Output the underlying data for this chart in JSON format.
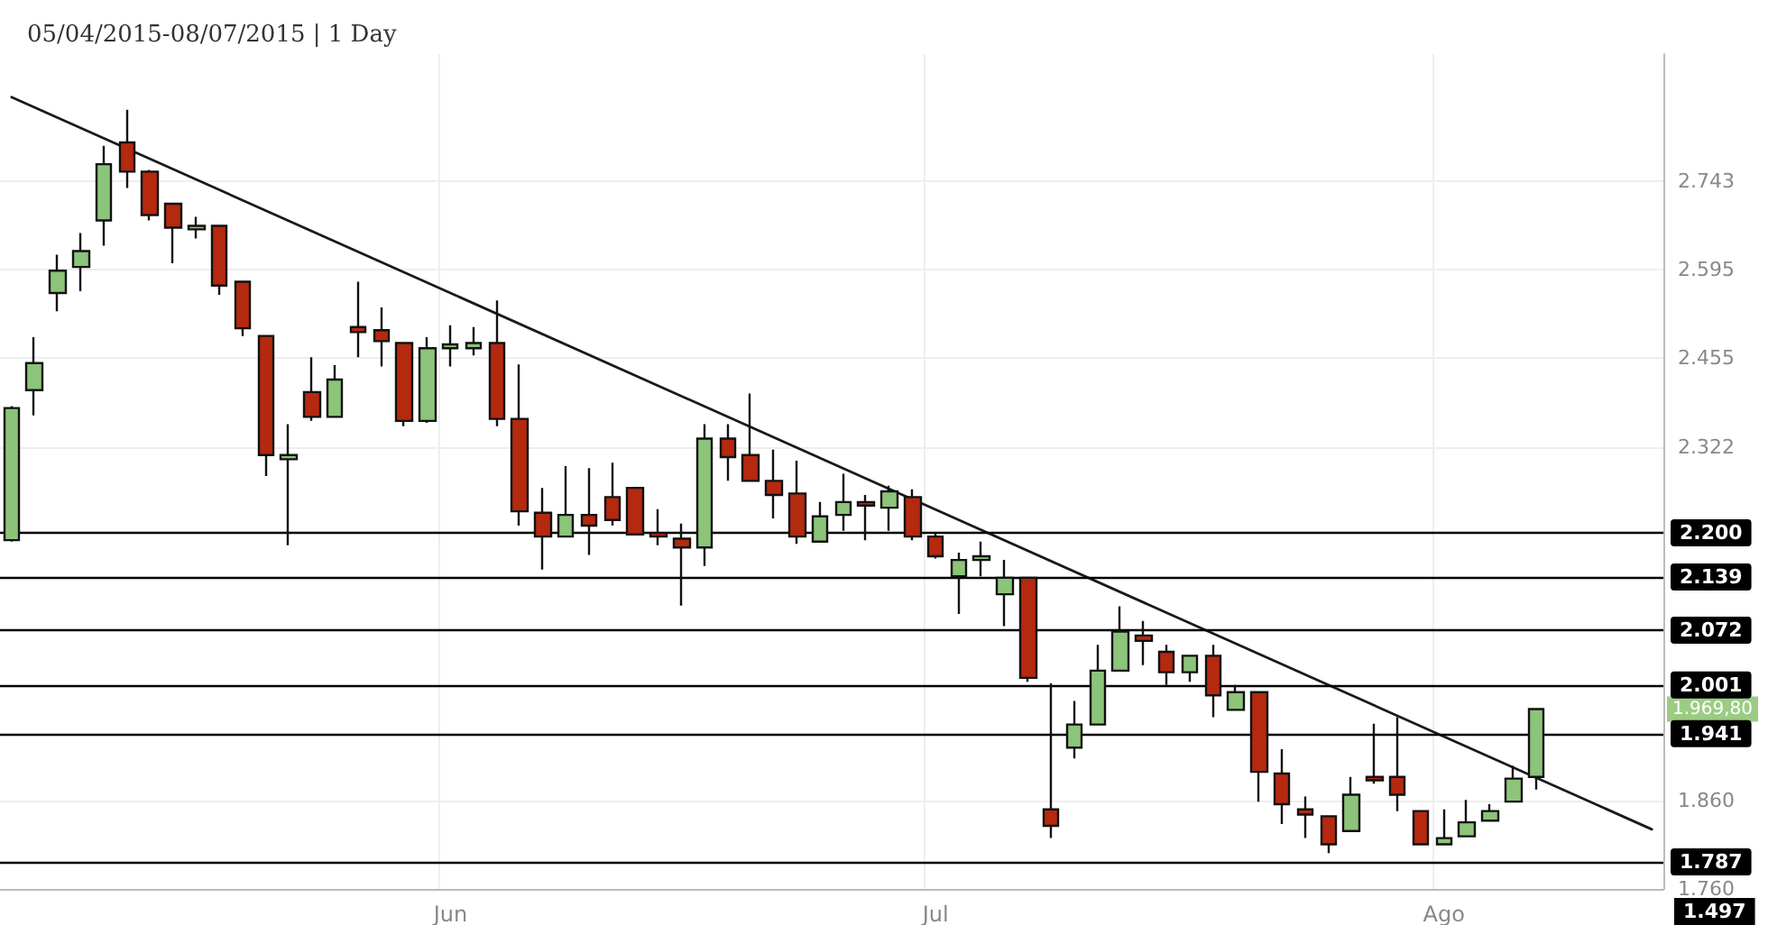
{
  "chart_data": {
    "type": "candlestick",
    "title": "05/04/2015-08/07/2015 | 1 Day",
    "log": true,
    "grid": true,
    "categories": [
      null,
      null,
      null,
      null,
      null,
      null,
      null,
      null,
      null,
      null,
      null,
      null,
      null,
      null,
      null,
      null,
      null,
      null,
      null,
      "Jun",
      null,
      null,
      null,
      null,
      null,
      null,
      null,
      null,
      null,
      null,
      null,
      null,
      null,
      null,
      null,
      null,
      null,
      null,
      null,
      null,
      "Jul",
      null,
      null,
      null,
      null,
      null,
      null,
      null,
      null,
      null,
      null,
      null,
      null,
      null,
      null,
      null,
      null,
      null,
      null,
      null,
      null,
      null,
      "Ago",
      null,
      null,
      null,
      null,
      null,
      null,
      null,
      null,
      null
    ],
    "ylim": [
      1.76,
      2.97
    ],
    "yticks": [
      {
        "value": 1.76,
        "label": "1.760"
      },
      {
        "value": 1.86,
        "label": "1.860"
      },
      2.322,
      2.455,
      2.595,
      2.743
    ],
    "series": [
      {
        "colors": [
          "#8cc47a",
          "#8cc47a",
          "#8cc47a",
          "#8cc47a",
          "#8cc47a",
          "#b5290f",
          "#b5290f",
          "#b5290f",
          "#8cc47a",
          "#b5290f",
          "#b5290f",
          "#b5290f",
          "#8cc47a",
          "#b5290f",
          "#8cc47a",
          "#b5290f",
          "#b5290f",
          "#b5290f",
          "#8cc47a",
          "#8cc47a",
          "#8cc47a",
          "#b5290f",
          "#b5290f",
          "#b5290f",
          "#8cc47a",
          "#b5290f",
          "#b5290f",
          "#b5290f",
          "#b5290f",
          "#b5290f",
          "#8cc47a",
          "#b5290f",
          "#b5290f",
          "#b5290f",
          "#b5290f",
          "#8cc47a",
          "#8cc47a",
          "#b5290f",
          "#8cc47a",
          "#b5290f",
          "#b5290f",
          "#8cc47a",
          "#8cc47a",
          "#8cc47a",
          "#b5290f",
          "#b5290f",
          "#8cc47a",
          "#8cc47a",
          "#8cc47a",
          "#b5290f",
          "#b5290f",
          "#8cc47a",
          "#b5290f",
          "#8cc47a",
          "#b5290f",
          "#b5290f",
          "#b5290f",
          "#b5290f",
          "#8cc47a",
          "#b5290f",
          "#b5290f",
          "#b5290f",
          "#8cc47a",
          "#8cc47a",
          "#8cc47a",
          "#8cc47a",
          "#8cc47a",
          null,
          null,
          null,
          null,
          null
        ],
        "ohlc": [
          [
            2.19,
            2.382,
            2.188,
            2.379
          ],
          [
            2.406,
            2.487,
            2.368,
            2.447
          ],
          [
            2.557,
            2.619,
            2.528,
            2.593
          ],
          [
            2.599,
            2.655,
            2.56,
            2.625
          ],
          [
            2.676,
            2.804,
            2.634,
            2.772
          ],
          [
            2.81,
            2.868,
            2.731,
            2.759
          ],
          [
            2.759,
            2.762,
            2.676,
            2.685
          ],
          [
            2.704,
            2.704,
            2.605,
            2.664
          ],
          [
            2.661,
            2.682,
            2.646,
            2.667
          ],
          [
            2.667,
            2.667,
            2.554,
            2.569
          ],
          [
            2.575,
            2.575,
            2.489,
            2.501
          ],
          [
            2.489,
            2.489,
            2.28,
            2.31
          ],
          [
            2.304,
            2.355,
            2.183,
            2.31
          ],
          [
            2.403,
            2.456,
            2.36,
            2.366
          ],
          [
            2.366,
            2.444,
            2.366,
            2.422
          ],
          [
            2.503,
            2.575,
            2.456,
            2.495
          ],
          [
            2.498,
            2.534,
            2.442,
            2.481
          ],
          [
            2.478,
            2.478,
            2.352,
            2.36
          ],
          [
            2.36,
            2.487,
            2.357,
            2.47
          ],
          [
            2.47,
            2.506,
            2.442,
            2.476
          ],
          [
            2.47,
            2.503,
            2.459,
            2.478
          ],
          [
            2.478,
            2.545,
            2.352,
            2.363
          ],
          [
            2.363,
            2.445,
            2.21,
            2.23
          ],
          [
            2.228,
            2.263,
            2.15,
            2.195
          ],
          [
            2.195,
            2.294,
            2.195,
            2.225
          ],
          [
            2.225,
            2.291,
            2.17,
            2.21
          ],
          [
            2.25,
            2.299,
            2.21,
            2.218
          ],
          [
            2.263,
            2.263,
            2.198,
            2.198
          ],
          [
            2.2,
            2.233,
            2.183,
            2.195
          ],
          [
            2.192,
            2.213,
            2.102,
            2.18
          ],
          [
            2.18,
            2.355,
            2.155,
            2.334
          ],
          [
            2.334,
            2.355,
            2.273,
            2.307
          ],
          [
            2.31,
            2.401,
            2.273,
            2.273
          ],
          [
            2.273,
            2.318,
            2.22,
            2.253
          ],
          [
            2.255,
            2.302,
            2.185,
            2.195
          ],
          [
            2.188,
            2.243,
            2.188,
            2.223
          ],
          [
            2.225,
            2.283,
            2.203,
            2.243
          ],
          [
            2.243,
            2.253,
            2.19,
            2.238
          ],
          [
            2.235,
            2.266,
            2.203,
            2.258
          ],
          [
            2.25,
            2.261,
            2.19,
            2.195
          ],
          [
            2.195,
            2.2,
            2.165,
            2.168
          ],
          [
            2.141,
            2.173,
            2.091,
            2.163
          ],
          [
            2.163,
            2.188,
            2.141,
            2.168
          ],
          [
            2.117,
            2.163,
            2.075,
            2.139
          ],
          [
            2.139,
            2.139,
            2.004,
            2.009
          ],
          [
            1.85,
            2.002,
            1.817,
            1.831
          ],
          [
            1.923,
            1.98,
            1.91,
            1.951
          ],
          [
            1.951,
            2.051,
            1.951,
            2.018
          ],
          [
            2.018,
            2.101,
            2.018,
            2.068
          ],
          [
            2.063,
            2.082,
            2.025,
            2.056
          ],
          [
            2.042,
            2.051,
            2.0,
            2.016
          ],
          [
            2.016,
            2.037,
            2.004,
            2.037
          ],
          [
            2.037,
            2.051,
            1.96,
            1.987
          ],
          [
            1.969,
            2.0,
            1.969,
            1.991
          ],
          [
            1.991,
            1.991,
            1.859,
            1.894
          ],
          [
            1.892,
            1.921,
            1.833,
            1.856
          ],
          [
            1.85,
            1.865,
            1.817,
            1.844
          ],
          [
            1.842,
            1.842,
            1.8,
            1.81
          ],
          [
            1.825,
            1.888,
            1.825,
            1.867
          ],
          [
            1.888,
            1.952,
            1.88,
            1.884
          ],
          [
            1.888,
            1.96,
            1.848,
            1.867
          ],
          [
            1.848,
            1.848,
            1.81,
            1.81
          ],
          [
            1.81,
            1.85,
            1.81,
            1.817
          ],
          [
            1.819,
            1.861,
            1.819,
            1.835
          ],
          [
            1.837,
            1.856,
            1.837,
            1.848
          ],
          [
            1.859,
            1.901,
            1.859,
            1.886
          ],
          [
            1.888,
            1.971,
            1.873,
            1.97
          ],
          null,
          null,
          null,
          null,
          null
        ]
      },
      {
        "type": "line",
        "color": "#1a1a1a",
        "values": [
          2.891,
          null,
          null,
          null,
          null,
          null,
          null,
          null,
          null,
          null,
          null,
          null,
          null,
          null,
          null,
          null,
          null,
          null,
          null,
          null,
          null,
          null,
          null,
          null,
          null,
          null,
          null,
          null,
          null,
          null,
          null,
          null,
          null,
          null,
          null,
          null,
          null,
          null,
          null,
          null,
          null,
          null,
          null,
          null,
          null,
          null,
          null,
          null,
          null,
          null,
          null,
          null,
          null,
          null,
          null,
          null,
          null,
          null,
          null,
          null,
          null,
          null,
          null,
          null,
          null,
          null,
          null,
          null,
          null,
          null,
          null,
          1.827
        ]
      }
    ],
    "ref_lines": [
      {
        "axis": "y",
        "value": 2.2,
        "label": "2.200",
        "color": "#000000"
      },
      {
        "axis": "y",
        "value": 2.139,
        "label": "2.139",
        "color": "#000000"
      },
      {
        "axis": "y",
        "value": 2.072,
        "label": "2.072",
        "color": "#000000"
      },
      {
        "axis": "y",
        "value": 2.001,
        "label": "2.001",
        "color": "#000000"
      },
      {
        "axis": "y",
        "value": 1.941,
        "label": "1.941",
        "color": "#000000"
      },
      {
        "axis": "y",
        "value": 1.787,
        "label": "1.787",
        "color": "#000000"
      }
    ],
    "annotations": [
      "1.969,80",
      "1.497"
    ]
  }
}
